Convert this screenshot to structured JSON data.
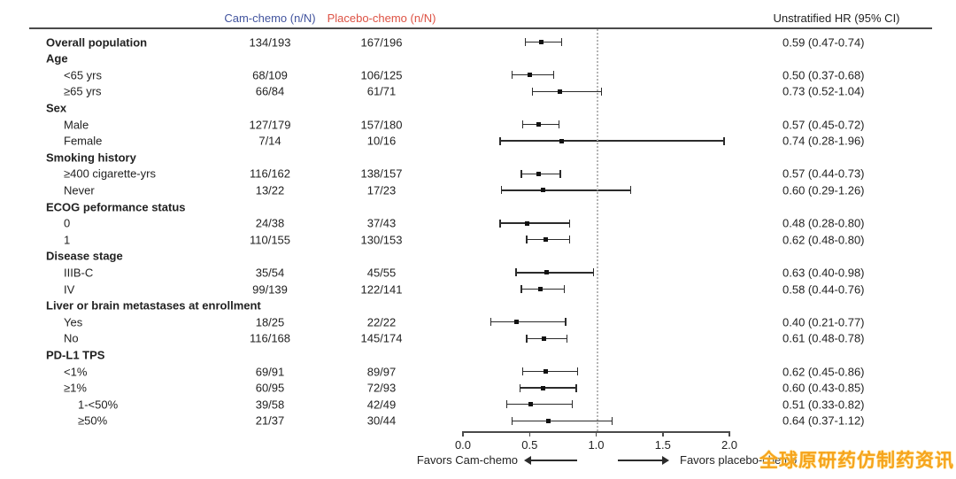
{
  "header": {
    "cam_label": "Cam-chemo (n/N)",
    "placebo_label": "Placebo-chemo (n/N)",
    "hr_label": "Unstratified HR (95% CI)",
    "cam_color": "#42549e",
    "placebo_color": "#dd5244"
  },
  "chart_data": {
    "type": "forest",
    "columns": [
      "Cam-chemo (n/N)",
      "Placebo-chemo (n/N)",
      "Unstratified HR (95% CI)"
    ],
    "xlim": [
      0.0,
      2.0
    ],
    "tick_labels": [
      "0.0",
      "0.5",
      "1.0",
      "1.5",
      "2.0"
    ],
    "ticks": [
      0.0,
      0.5,
      1.0,
      1.5,
      2.0
    ],
    "ref_line": 1.0,
    "favors_left": "Favors Cam-chemo",
    "favors_right": "Favors placebo-chemo",
    "rows": [
      {
        "label": "Overall population",
        "bold": true,
        "indent": 0,
        "cam": "134/193",
        "placebo": "167/196",
        "est": 0.59,
        "lo": 0.47,
        "hi": 0.74,
        "hr": "0.59 (0.47-0.74)"
      },
      {
        "label": "Age",
        "bold": true,
        "indent": 0,
        "cam": null,
        "placebo": null,
        "est": null,
        "lo": null,
        "hi": null,
        "hr": null
      },
      {
        "label": "<65 yrs",
        "bold": false,
        "indent": 1,
        "cam": "68/109",
        "placebo": "106/125",
        "est": 0.5,
        "lo": 0.37,
        "hi": 0.68,
        "hr": "0.50 (0.37-0.68)"
      },
      {
        "label": "≥65 yrs",
        "bold": false,
        "indent": 1,
        "cam": "66/84",
        "placebo": "61/71",
        "est": 0.73,
        "lo": 0.52,
        "hi": 1.04,
        "hr": "0.73 (0.52-1.04)"
      },
      {
        "label": "Sex",
        "bold": true,
        "indent": 0,
        "cam": null,
        "placebo": null,
        "est": null,
        "lo": null,
        "hi": null,
        "hr": null
      },
      {
        "label": "Male",
        "bold": false,
        "indent": 1,
        "cam": "127/179",
        "placebo": "157/180",
        "est": 0.57,
        "lo": 0.45,
        "hi": 0.72,
        "hr": "0.57 (0.45-0.72)"
      },
      {
        "label": "Female",
        "bold": false,
        "indent": 1,
        "cam": "7/14",
        "placebo": "10/16",
        "est": 0.74,
        "lo": 0.28,
        "hi": 1.96,
        "hr": "0.74 (0.28-1.96)"
      },
      {
        "label": "Smoking history",
        "bold": true,
        "indent": 0,
        "cam": null,
        "placebo": null,
        "est": null,
        "lo": null,
        "hi": null,
        "hr": null
      },
      {
        "label": "≥400 cigarette-yrs",
        "bold": false,
        "indent": 1,
        "cam": "116/162",
        "placebo": "138/157",
        "est": 0.57,
        "lo": 0.44,
        "hi": 0.73,
        "hr": "0.57 (0.44-0.73)"
      },
      {
        "label": "Never",
        "bold": false,
        "indent": 1,
        "cam": "13/22",
        "placebo": "17/23",
        "est": 0.6,
        "lo": 0.29,
        "hi": 1.26,
        "hr": "0.60 (0.29-1.26)"
      },
      {
        "label": "ECOG peformance status",
        "bold": true,
        "indent": 0,
        "cam": null,
        "placebo": null,
        "est": null,
        "lo": null,
        "hi": null,
        "hr": null
      },
      {
        "label": "0",
        "bold": false,
        "indent": 1,
        "cam": "24/38",
        "placebo": "37/43",
        "est": 0.48,
        "lo": 0.28,
        "hi": 0.8,
        "hr": "0.48 (0.28-0.80)"
      },
      {
        "label": "1",
        "bold": false,
        "indent": 1,
        "cam": "110/155",
        "placebo": "130/153",
        "est": 0.62,
        "lo": 0.48,
        "hi": 0.8,
        "hr": "0.62 (0.48-0.80)"
      },
      {
        "label": "Disease stage",
        "bold": true,
        "indent": 0,
        "cam": null,
        "placebo": null,
        "est": null,
        "lo": null,
        "hi": null,
        "hr": null
      },
      {
        "label": "IIIB-C",
        "bold": false,
        "indent": 1,
        "cam": "35/54",
        "placebo": "45/55",
        "est": 0.63,
        "lo": 0.4,
        "hi": 0.98,
        "hr": "0.63 (0.40-0.98)"
      },
      {
        "label": "IV",
        "bold": false,
        "indent": 1,
        "cam": "99/139",
        "placebo": "122/141",
        "est": 0.58,
        "lo": 0.44,
        "hi": 0.76,
        "hr": "0.58 (0.44-0.76)"
      },
      {
        "label": "Liver or brain metastases at enrollment",
        "bold": true,
        "indent": 0,
        "cam": null,
        "placebo": null,
        "est": null,
        "lo": null,
        "hi": null,
        "hr": null
      },
      {
        "label": "Yes",
        "bold": false,
        "indent": 1,
        "cam": "18/25",
        "placebo": "22/22",
        "est": 0.4,
        "lo": 0.21,
        "hi": 0.77,
        "hr": "0.40 (0.21-0.77)"
      },
      {
        "label": "No",
        "bold": false,
        "indent": 1,
        "cam": "116/168",
        "placebo": "145/174",
        "est": 0.61,
        "lo": 0.48,
        "hi": 0.78,
        "hr": "0.61 (0.48-0.78)"
      },
      {
        "label": "PD-L1 TPS",
        "bold": true,
        "indent": 0,
        "cam": null,
        "placebo": null,
        "est": null,
        "lo": null,
        "hi": null,
        "hr": null
      },
      {
        "label": "<1%",
        "bold": false,
        "indent": 1,
        "cam": "69/91",
        "placebo": "89/97",
        "est": 0.62,
        "lo": 0.45,
        "hi": 0.86,
        "hr": "0.62 (0.45-0.86)"
      },
      {
        "label": "≥1%",
        "bold": false,
        "indent": 1,
        "cam": "60/95",
        "placebo": "72/93",
        "est": 0.6,
        "lo": 0.43,
        "hi": 0.85,
        "hr": "0.60 (0.43-0.85)"
      },
      {
        "label": "1-<50%",
        "bold": false,
        "indent": 2,
        "cam": "39/58",
        "placebo": "42/49",
        "est": 0.51,
        "lo": 0.33,
        "hi": 0.82,
        "hr": "0.51 (0.33-0.82)"
      },
      {
        "label": "≥50%",
        "bold": false,
        "indent": 2,
        "cam": "21/37",
        "placebo": "30/44",
        "est": 0.64,
        "lo": 0.37,
        "hi": 1.12,
        "hr": "0.64 (0.37-1.12)"
      }
    ]
  },
  "watermark": {
    "text": "全球原研药仿制药资讯",
    "color": "#f6a41e"
  }
}
